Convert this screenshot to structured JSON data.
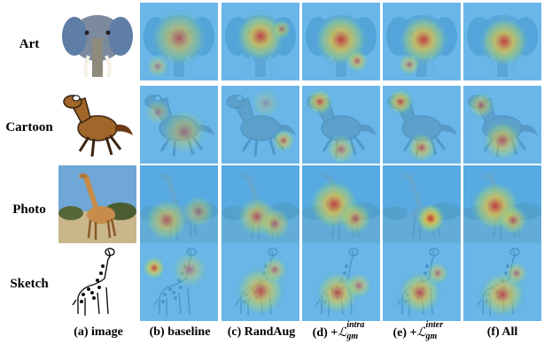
{
  "figure": {
    "rows": [
      {
        "id": "art",
        "label": "Art"
      },
      {
        "id": "cartoon",
        "label": "Cartoon"
      },
      {
        "id": "photo",
        "label": "Photo"
      },
      {
        "id": "sketch",
        "label": "Sketch"
      }
    ],
    "columns": [
      {
        "id": "image",
        "label": "(a) image"
      },
      {
        "id": "baseline",
        "label": "(b) baseline"
      },
      {
        "id": "randaug",
        "label": "(c) RandAug"
      },
      {
        "id": "intra",
        "label_prefix": "(d) +",
        "loss_symbol": "ℒ",
        "loss_sub": "gm",
        "loss_sup": "intra"
      },
      {
        "id": "inter",
        "label_prefix": "(e) +",
        "loss_symbol": "ℒ",
        "loss_sub": "gm",
        "loss_sup": "inter"
      },
      {
        "id": "all",
        "label": "(f) All"
      }
    ],
    "colors": {
      "heat_cold": "#2b3fbf",
      "heat_cool": "#3fb0e8",
      "heat_mid": "#b8e86a",
      "heat_warm": "#f6d53a",
      "heat_hot": "#e03222",
      "sky": "#6fa8d6",
      "grass": "#c9b68a"
    }
  }
}
